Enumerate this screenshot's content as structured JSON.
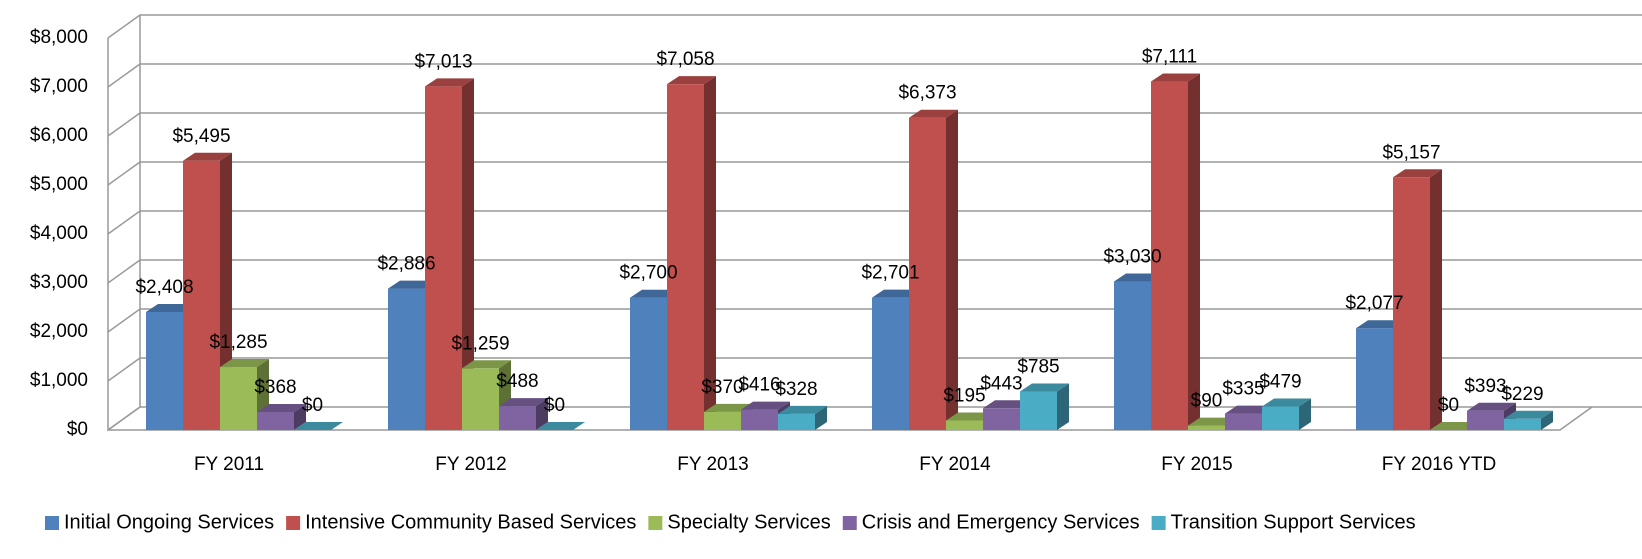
{
  "chart_data": {
    "type": "bar3d",
    "categories": [
      "FY 2011",
      "FY 2012",
      "FY 2013",
      "FY 2014",
      "FY 2015",
      "FY 2016 YTD"
    ],
    "series": [
      {
        "name": "Initial Ongoing Services",
        "color": "#4f81bd",
        "values": [
          2408,
          2886,
          2700,
          2701,
          3030,
          2077
        ],
        "value_labels": [
          "$2,408",
          "$2,886",
          "$2,700",
          "$2,701",
          "$3,030",
          "$2,077"
        ]
      },
      {
        "name": "Intensive Community Based Services",
        "color": "#c0504d",
        "values": [
          5495,
          7013,
          7058,
          6373,
          7111,
          5157
        ],
        "value_labels": [
          "$5,495",
          "$7,013",
          "$7,058",
          "$6,373",
          "$7,111",
          "$5,157"
        ]
      },
      {
        "name": "Specialty Services",
        "color": "#9bbb59",
        "values": [
          1285,
          1259,
          370,
          195,
          90,
          0
        ],
        "value_labels": [
          "$1,285",
          "$1,259",
          "$370",
          "$195",
          "$90",
          "$0"
        ]
      },
      {
        "name": "Crisis and Emergency Services",
        "color": "#8064a2",
        "values": [
          368,
          488,
          416,
          443,
          335,
          393
        ],
        "value_labels": [
          "$368",
          "$488",
          "$416",
          "$443",
          "$335",
          "$393"
        ]
      },
      {
        "name": "Transition Support Services",
        "color": "#4bacc6",
        "values": [
          0,
          0,
          328,
          785,
          479,
          229
        ],
        "value_labels": [
          "$0",
          "$0",
          "$328",
          "$785",
          "$479",
          "$229"
        ]
      }
    ],
    "ylim": [
      0,
      8000
    ],
    "yticks": [
      {
        "value": 0,
        "label": "$0"
      },
      {
        "value": 1000,
        "label": "$1,000"
      },
      {
        "value": 2000,
        "label": "$2,000"
      },
      {
        "value": 3000,
        "label": "$3,000"
      },
      {
        "value": 4000,
        "label": "$4,000"
      },
      {
        "value": 5000,
        "label": "$5,000"
      },
      {
        "value": 6000,
        "label": "$6,000"
      },
      {
        "value": 7000,
        "label": "$7,000"
      },
      {
        "value": 8000,
        "label": "$8,000"
      }
    ],
    "grid": true,
    "legend": "bottom"
  }
}
